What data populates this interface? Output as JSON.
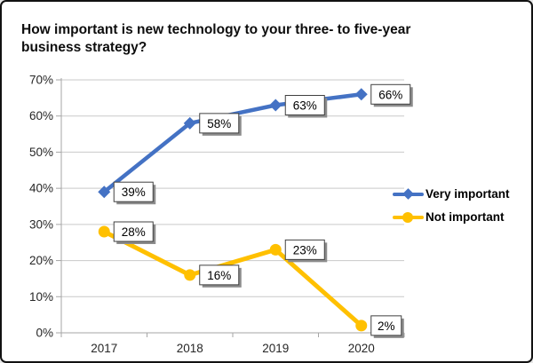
{
  "window": {
    "background": "#ffffff",
    "border_color": "#111111"
  },
  "header": {
    "title": "How important is new technology to your three- to five-year business strategy?"
  },
  "chart_data": {
    "type": "line",
    "title": "How important is new technology to your three- to five-year business strategy?",
    "categories": [
      "2017",
      "2018",
      "2019",
      "2020"
    ],
    "series": [
      {
        "name": "Very important",
        "color": "#4472C4",
        "marker": "diamond",
        "values": [
          39,
          58,
          63,
          66
        ],
        "labels": [
          "39%",
          "58%",
          "63%",
          "66%"
        ]
      },
      {
        "name": "Not important",
        "color": "#FFC000",
        "marker": "circle",
        "values": [
          28,
          16,
          23,
          2
        ],
        "labels": [
          "28%",
          "16%",
          "23%",
          "2%"
        ]
      }
    ],
    "xlabel": "",
    "ylabel": "",
    "ylim": [
      0,
      70
    ],
    "ytick_step": 10,
    "ytick_labels": [
      "0%",
      "10%",
      "20%",
      "30%",
      "40%",
      "50%",
      "60%",
      "70%"
    ],
    "grid": true,
    "legend_position": "right-middle",
    "colors": {
      "gridline": "#C9C9C9",
      "axis": "#A6A6A6",
      "tick_label": "#262626",
      "data_label_text": "#000000",
      "data_label_border": "#404040",
      "data_label_fill": "#FFFFFF",
      "data_label_shadow": "#8C8C8C"
    }
  }
}
